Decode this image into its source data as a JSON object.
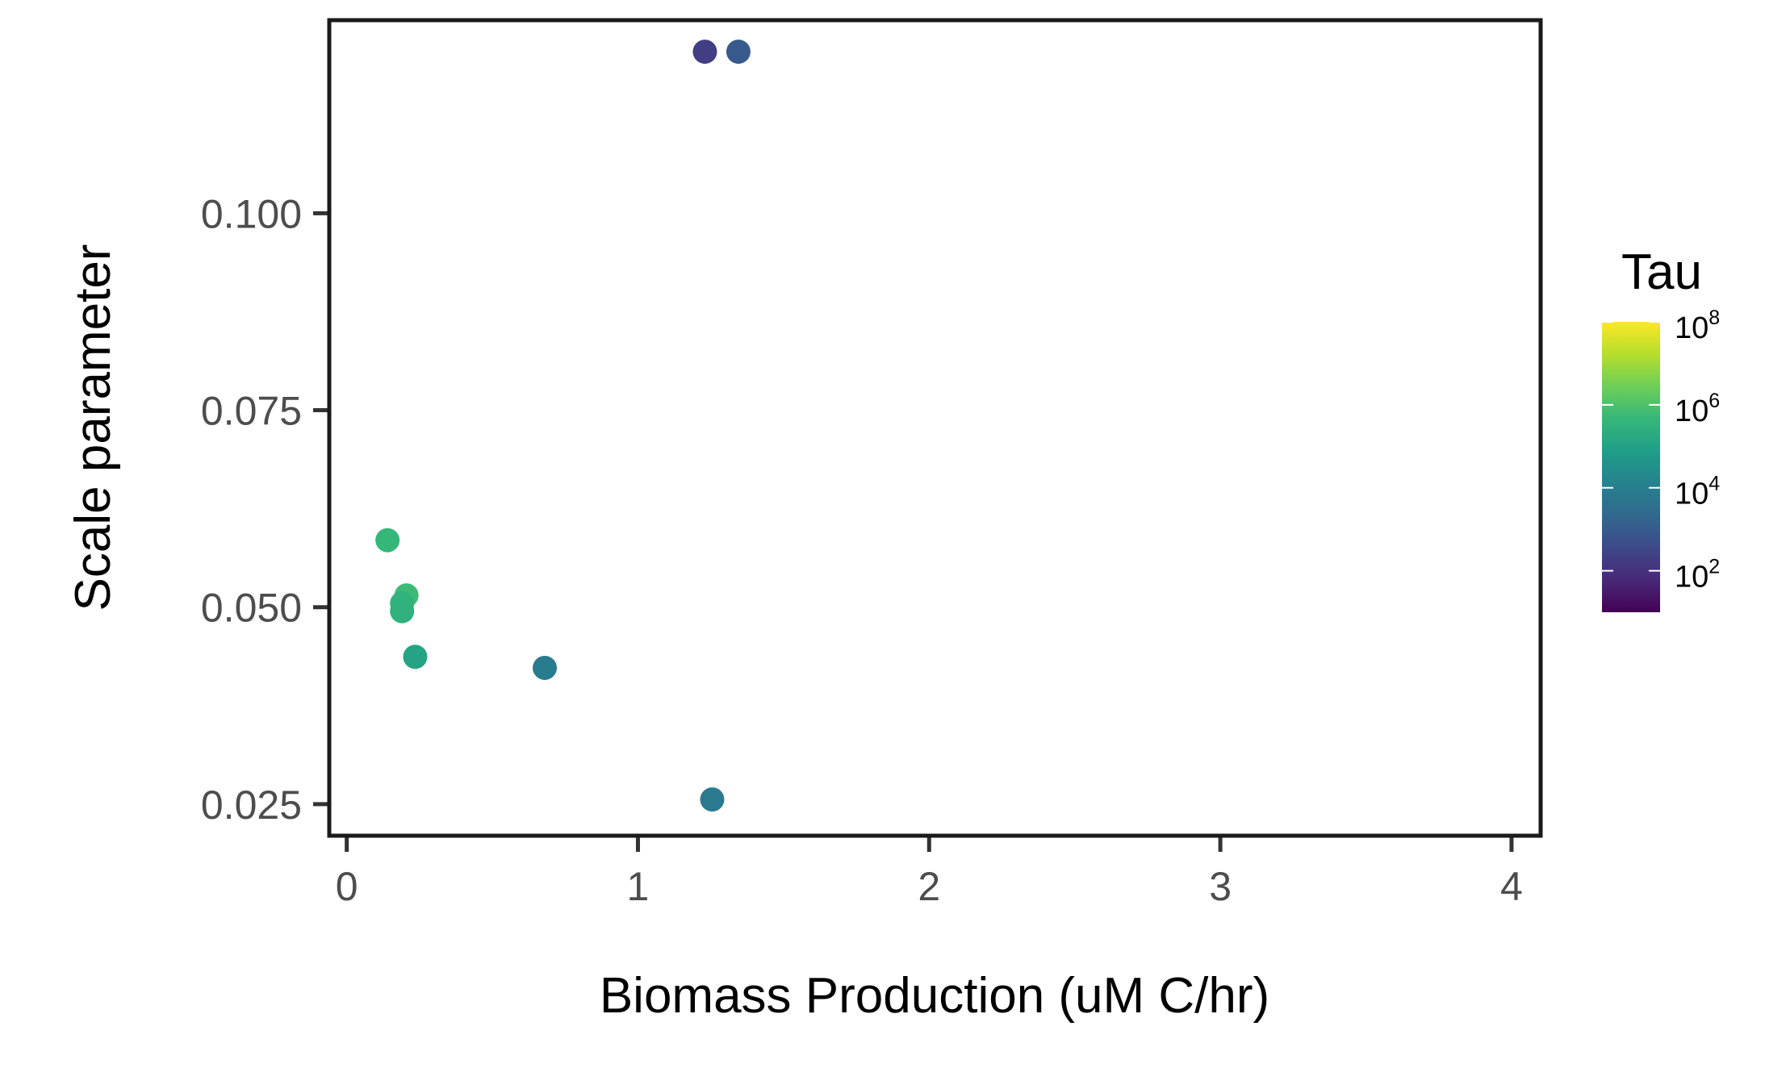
{
  "chart_data": {
    "type": "scatter",
    "title": "",
    "xlabel": "Biomass Production (uM C/hr)",
    "ylabel": "Scale parameter",
    "xlim": [
      -0.06,
      4.1
    ],
    "ylim": [
      0.021,
      0.1245
    ],
    "x_ticks": [
      {
        "value": 0,
        "label": "0"
      },
      {
        "value": 1,
        "label": "1"
      },
      {
        "value": 2,
        "label": "2"
      },
      {
        "value": 3,
        "label": "3"
      },
      {
        "value": 4,
        "label": "4"
      }
    ],
    "y_ticks": [
      {
        "value": 0.025,
        "label": "0.025"
      },
      {
        "value": 0.05,
        "label": "0.050"
      },
      {
        "value": 0.075,
        "label": "0.075"
      },
      {
        "value": 0.1,
        "label": "0.100"
      }
    ],
    "grid": false,
    "color_scale": {
      "title": "Tau",
      "palette": "viridis",
      "scale": "log10",
      "range": [
        10,
        100000000
      ],
      "ticks": [
        {
          "value": 100,
          "base": "10",
          "exp": "2"
        },
        {
          "value": 10000,
          "base": "10",
          "exp": "4"
        },
        {
          "value": 1000000,
          "base": "10",
          "exp": "6"
        },
        {
          "value": 100000000,
          "base": "10",
          "exp": "8"
        }
      ],
      "legend_position": "right"
    },
    "points": [
      {
        "x": 1.23,
        "y": 0.1205,
        "tau": 200
      },
      {
        "x": 1.345,
        "y": 0.1205,
        "tau": 900
      },
      {
        "x": 0.14,
        "y": 0.0585,
        "tau": 450000
      },
      {
        "x": 0.205,
        "y": 0.0515,
        "tau": 600000
      },
      {
        "x": 0.19,
        "y": 0.0505,
        "tau": 350000
      },
      {
        "x": 0.19,
        "y": 0.0495,
        "tau": 300000
      },
      {
        "x": 0.235,
        "y": 0.0437,
        "tau": 120000
      },
      {
        "x": 0.68,
        "y": 0.0423,
        "tau": 8000
      },
      {
        "x": 1.255,
        "y": 0.0256,
        "tau": 7000
      }
    ]
  }
}
